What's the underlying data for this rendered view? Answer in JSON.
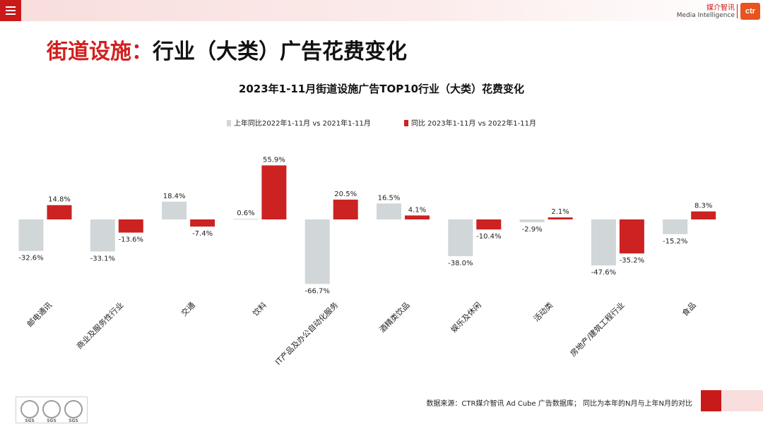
{
  "header": {
    "brand_cn": "媒介智讯",
    "brand_en": "Media Intelligence",
    "logo_text": "ctr"
  },
  "page_title": {
    "highlight": "街道设施：",
    "rest": "行业（大类）广告花费变化"
  },
  "colors": {
    "accent": "#c91a1a",
    "series1": "#d1d6d8",
    "series2": "#cc2222"
  },
  "chart_data": {
    "type": "bar",
    "title": "2023年1-11月街道设施广告TOP10行业（大类）花费变化",
    "categories": [
      "邮电通讯",
      "商业及服务性行业",
      "交通",
      "饮料",
      "IT产品及办公自动化服务",
      "酒精类饮品",
      "娱乐及休闲",
      "活动类",
      "房地产/建筑工程行业",
      "食品"
    ],
    "series": [
      {
        "name": "上年同比2022年1-11月  vs  2021年1-11月",
        "values": [
          -32.6,
          -33.1,
          18.4,
          0.6,
          -66.7,
          16.5,
          -38.0,
          -2.9,
          -47.6,
          -15.2
        ]
      },
      {
        "name": "同比 2023年1-11月  vs  2022年1-11月",
        "values": [
          14.8,
          -13.6,
          -7.4,
          55.9,
          20.5,
          4.1,
          -10.4,
          2.1,
          -35.2,
          8.3
        ]
      }
    ],
    "value_labels": [
      [
        "-32.6%",
        "-33.1%",
        "18.4%",
        "0.6%",
        "-66.7%",
        "16.5%",
        "-38.0%",
        "-2.9%",
        "-47.6%",
        "-15.2%"
      ],
      [
        "14.8%",
        "-13.6%",
        "-7.4%",
        "55.9%",
        "20.5%",
        "4.1%",
        "-10.4%",
        "2.1%",
        "-35.2%",
        "8.3%"
      ]
    ],
    "unit": "%",
    "legend_position": "top",
    "grid": false
  },
  "footer": {
    "source_note": "数据来源：CTR媒介智讯 Ad Cube 广告数据库；  同比为本年的N月与上年N月的对比",
    "badge_text": "SGS"
  }
}
